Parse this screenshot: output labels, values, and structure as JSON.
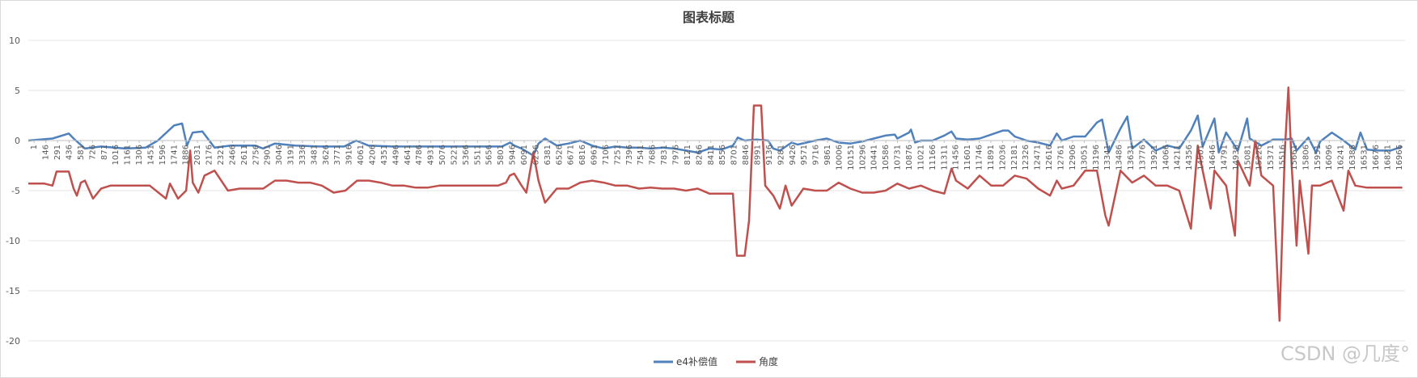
{
  "chart_data": {
    "type": "line",
    "title": "图表标题",
    "xlabel": "",
    "ylabel": "",
    "ylim": [
      -20,
      10
    ],
    "yticks": [
      10,
      5,
      0,
      -5,
      -10,
      -15,
      -20
    ],
    "xlim": [
      1,
      17000
    ],
    "x_tick_labels": [
      "1",
      "146",
      "291",
      "436",
      "581",
      "726",
      "871",
      "1016",
      "1161",
      "1306",
      "1451",
      "1596",
      "1741",
      "1886",
      "2031",
      "2176",
      "2321",
      "2466",
      "2611",
      "2756",
      "2901",
      "3046",
      "3191",
      "3336",
      "3481",
      "3626",
      "3771",
      "3916",
      "4061",
      "4206",
      "4351",
      "4496",
      "4641",
      "4786",
      "4931",
      "5076",
      "5221",
      "5366",
      "5511",
      "5656",
      "5801",
      "5946",
      "6091",
      "6236",
      "6381",
      "6526",
      "6671",
      "6816",
      "6961",
      "7106",
      "7251",
      "7396",
      "7541",
      "7686",
      "7831",
      "7976",
      "8121",
      "8266",
      "8411",
      "8556",
      "8701",
      "8846",
      "8991",
      "9136",
      "9281",
      "9426",
      "9571",
      "9716",
      "9861",
      "10006",
      "10151",
      "10296",
      "10441",
      "10586",
      "10731",
      "10876",
      "11021",
      "11166",
      "11311",
      "11456",
      "11601",
      "11746",
      "11891",
      "12036",
      "12181",
      "12326",
      "12471",
      "12616",
      "12761",
      "12906",
      "13051",
      "13196",
      "13341",
      "13486",
      "13631",
      "13776",
      "13921",
      "14066",
      "14211",
      "14356",
      "14501",
      "14646",
      "14791",
      "14936",
      "15081",
      "15226",
      "15371",
      "15516",
      "15661",
      "15806",
      "15951",
      "16096",
      "16241",
      "16386",
      "16531",
      "16676",
      "16821",
      "16966"
    ],
    "grid": true,
    "legend_position": "bottom",
    "series": [
      {
        "name": "e4补偿值",
        "color": "#4F81BD",
        "points": [
          [
            1,
            0
          ],
          [
            300,
            0.2
          ],
          [
            500,
            0.7
          ],
          [
            560,
            0.2
          ],
          [
            700,
            -0.8
          ],
          [
            900,
            -0.6
          ],
          [
            1200,
            -0.8
          ],
          [
            1450,
            -0.7
          ],
          [
            1600,
            0
          ],
          [
            1800,
            1.5
          ],
          [
            1900,
            1.7
          ],
          [
            1960,
            -0.5
          ],
          [
            2030,
            0.8
          ],
          [
            2150,
            0.9
          ],
          [
            2300,
            -0.7
          ],
          [
            2500,
            -0.5
          ],
          [
            2800,
            -0.5
          ],
          [
            2900,
            -0.8
          ],
          [
            3046,
            -0.3
          ],
          [
            3300,
            -0.5
          ],
          [
            3600,
            -0.6
          ],
          [
            3900,
            -0.6
          ],
          [
            4050,
            0
          ],
          [
            4200,
            -0.5
          ],
          [
            4500,
            -0.6
          ],
          [
            4800,
            -0.6
          ],
          [
            5100,
            -0.6
          ],
          [
            5400,
            -0.6
          ],
          [
            5700,
            -0.6
          ],
          [
            5850,
            -0.6
          ],
          [
            5950,
            -0.2
          ],
          [
            6000,
            -0.5
          ],
          [
            6091,
            -0.8
          ],
          [
            6236,
            -1.5
          ],
          [
            6300,
            -0.3
          ],
          [
            6381,
            0.2
          ],
          [
            6526,
            -0.5
          ],
          [
            6671,
            -0.3
          ],
          [
            6816,
            0
          ],
          [
            6961,
            -0.5
          ],
          [
            7106,
            -0.8
          ],
          [
            7251,
            -0.6
          ],
          [
            7396,
            -0.7
          ],
          [
            7541,
            -0.7
          ],
          [
            7686,
            -0.8
          ],
          [
            7831,
            -0.7
          ],
          [
            7976,
            -0.8
          ],
          [
            8121,
            -1
          ],
          [
            8266,
            -1.2
          ],
          [
            8411,
            -0.8
          ],
          [
            8556,
            -0.9
          ],
          [
            8701,
            -0.5
          ],
          [
            8760,
            0.3
          ],
          [
            8846,
            0
          ],
          [
            8991,
            0.1
          ],
          [
            9136,
            0
          ],
          [
            9200,
            -0.8
          ],
          [
            9281,
            -1
          ],
          [
            9426,
            -0.2
          ],
          [
            9500,
            -0.4
          ],
          [
            9716,
            0
          ],
          [
            9861,
            0.2
          ],
          [
            10006,
            -0.2
          ],
          [
            10151,
            -0.3
          ],
          [
            10296,
            -0.1
          ],
          [
            10441,
            0.2
          ],
          [
            10586,
            0.5
          ],
          [
            10700,
            0.6
          ],
          [
            10731,
            0.2
          ],
          [
            10876,
            0.8
          ],
          [
            10900,
            1.1
          ],
          [
            10950,
            -0.2
          ],
          [
            11021,
            0
          ],
          [
            11166,
            0
          ],
          [
            11311,
            0.5
          ],
          [
            11400,
            0.9
          ],
          [
            11456,
            0.2
          ],
          [
            11601,
            0.1
          ],
          [
            11746,
            0.2
          ],
          [
            11891,
            0.6
          ],
          [
            12036,
            1
          ],
          [
            12100,
            1
          ],
          [
            12181,
            0.4
          ],
          [
            12326,
            0
          ],
          [
            12471,
            -0.2
          ],
          [
            12616,
            -0.5
          ],
          [
            12700,
            0.7
          ],
          [
            12761,
            0
          ],
          [
            12906,
            0.4
          ],
          [
            13051,
            0.4
          ],
          [
            13196,
            1.8
          ],
          [
            13260,
            2.1
          ],
          [
            13341,
            -1.2
          ],
          [
            13486,
            1.2
          ],
          [
            13570,
            2.4
          ],
          [
            13631,
            -0.8
          ],
          [
            13776,
            0.1
          ],
          [
            13921,
            -1
          ],
          [
            14066,
            -0.5
          ],
          [
            14211,
            -0.8
          ],
          [
            14356,
            1
          ],
          [
            14440,
            2.5
          ],
          [
            14501,
            -0.6
          ],
          [
            14646,
            2.2
          ],
          [
            14700,
            -1.2
          ],
          [
            14791,
            0.8
          ],
          [
            14936,
            -1
          ],
          [
            15050,
            2.2
          ],
          [
            15081,
            0.2
          ],
          [
            15226,
            -0.5
          ],
          [
            15371,
            0.1
          ],
          [
            15516,
            0.1
          ],
          [
            15600,
            0.2
          ],
          [
            15661,
            -1
          ],
          [
            15806,
            0.3
          ],
          [
            15900,
            -1.2
          ],
          [
            15951,
            -0.1
          ],
          [
            16096,
            0.8
          ],
          [
            16241,
            0
          ],
          [
            16386,
            -0.9
          ],
          [
            16450,
            0.8
          ],
          [
            16531,
            -0.9
          ],
          [
            16676,
            -1
          ],
          [
            16821,
            -1
          ],
          [
            16966,
            -0.6
          ]
        ]
      },
      {
        "name": "角度",
        "color": "#C0504D",
        "points": [
          [
            1,
            -4.3
          ],
          [
            200,
            -4.3
          ],
          [
            300,
            -4.5
          ],
          [
            350,
            -3.1
          ],
          [
            500,
            -3.1
          ],
          [
            560,
            -4.8
          ],
          [
            600,
            -5.5
          ],
          [
            650,
            -4.2
          ],
          [
            700,
            -4
          ],
          [
            800,
            -5.8
          ],
          [
            900,
            -4.8
          ],
          [
            1016,
            -4.5
          ],
          [
            1300,
            -4.5
          ],
          [
            1500,
            -4.5
          ],
          [
            1700,
            -5.8
          ],
          [
            1750,
            -4.3
          ],
          [
            1850,
            -5.8
          ],
          [
            1950,
            -5
          ],
          [
            2000,
            -1
          ],
          [
            2031,
            -4.2
          ],
          [
            2100,
            -5.2
          ],
          [
            2176,
            -3.5
          ],
          [
            2300,
            -3
          ],
          [
            2466,
            -5
          ],
          [
            2611,
            -4.8
          ],
          [
            2756,
            -4.8
          ],
          [
            2901,
            -4.8
          ],
          [
            3046,
            -4
          ],
          [
            3191,
            -4
          ],
          [
            3336,
            -4.2
          ],
          [
            3481,
            -4.2
          ],
          [
            3626,
            -4.5
          ],
          [
            3771,
            -5.2
          ],
          [
            3916,
            -5
          ],
          [
            4061,
            -4
          ],
          [
            4206,
            -4
          ],
          [
            4351,
            -4.2
          ],
          [
            4496,
            -4.5
          ],
          [
            4641,
            -4.5
          ],
          [
            4786,
            -4.7
          ],
          [
            4931,
            -4.7
          ],
          [
            5076,
            -4.5
          ],
          [
            5221,
            -4.5
          ],
          [
            5366,
            -4.5
          ],
          [
            5511,
            -4.5
          ],
          [
            5656,
            -4.5
          ],
          [
            5801,
            -4.5
          ],
          [
            5900,
            -4.2
          ],
          [
            5946,
            -3.5
          ],
          [
            6000,
            -3.3
          ],
          [
            6091,
            -4.5
          ],
          [
            6150,
            -5.2
          ],
          [
            6236,
            -1.2
          ],
          [
            6300,
            -4
          ],
          [
            6381,
            -6.2
          ],
          [
            6526,
            -4.8
          ],
          [
            6671,
            -4.8
          ],
          [
            6816,
            -4.2
          ],
          [
            6961,
            -4
          ],
          [
            7106,
            -4.2
          ],
          [
            7251,
            -4.5
          ],
          [
            7396,
            -4.5
          ],
          [
            7541,
            -4.8
          ],
          [
            7686,
            -4.7
          ],
          [
            7831,
            -4.8
          ],
          [
            7976,
            -4.8
          ],
          [
            8121,
            -5
          ],
          [
            8266,
            -4.8
          ],
          [
            8411,
            -5.3
          ],
          [
            8556,
            -5.3
          ],
          [
            8701,
            -5.3
          ],
          [
            8750,
            -11.5
          ],
          [
            8846,
            -11.5
          ],
          [
            8900,
            -8
          ],
          [
            8960,
            3.5
          ],
          [
            9050,
            3.5
          ],
          [
            9100,
            -4.5
          ],
          [
            9200,
            -5.5
          ],
          [
            9281,
            -6.8
          ],
          [
            9350,
            -4.5
          ],
          [
            9426,
            -6.5
          ],
          [
            9571,
            -4.8
          ],
          [
            9716,
            -5
          ],
          [
            9861,
            -5
          ],
          [
            10006,
            -4.2
          ],
          [
            10151,
            -4.8
          ],
          [
            10296,
            -5.2
          ],
          [
            10441,
            -5.2
          ],
          [
            10586,
            -5
          ],
          [
            10731,
            -4.3
          ],
          [
            10876,
            -4.8
          ],
          [
            11021,
            -4.5
          ],
          [
            11166,
            -5
          ],
          [
            11311,
            -5.3
          ],
          [
            11400,
            -2.8
          ],
          [
            11456,
            -4
          ],
          [
            11601,
            -4.8
          ],
          [
            11746,
            -3.5
          ],
          [
            11891,
            -4.5
          ],
          [
            12036,
            -4.5
          ],
          [
            12181,
            -3.5
          ],
          [
            12326,
            -3.8
          ],
          [
            12471,
            -4.8
          ],
          [
            12616,
            -5.5
          ],
          [
            12700,
            -4
          ],
          [
            12761,
            -4.8
          ],
          [
            12906,
            -4.5
          ],
          [
            13051,
            -3
          ],
          [
            13196,
            -3
          ],
          [
            13300,
            -7.5
          ],
          [
            13341,
            -8.5
          ],
          [
            13486,
            -3
          ],
          [
            13631,
            -4.2
          ],
          [
            13776,
            -3.5
          ],
          [
            13921,
            -4.5
          ],
          [
            14066,
            -4.5
          ],
          [
            14211,
            -5
          ],
          [
            14356,
            -8.8
          ],
          [
            14440,
            -0.5
          ],
          [
            14501,
            -3
          ],
          [
            14600,
            -6.8
          ],
          [
            14646,
            -3
          ],
          [
            14791,
            -4.5
          ],
          [
            14900,
            -9.5
          ],
          [
            14936,
            -2
          ],
          [
            15081,
            -4.5
          ],
          [
            15150,
            0
          ],
          [
            15226,
            -3.5
          ],
          [
            15371,
            -4.5
          ],
          [
            15450,
            -18
          ],
          [
            15516,
            -1
          ],
          [
            15560,
            5.3
          ],
          [
            15600,
            -2.5
          ],
          [
            15661,
            -10.5
          ],
          [
            15700,
            -4
          ],
          [
            15806,
            -11.3
          ],
          [
            15850,
            -4.5
          ],
          [
            15951,
            -4.5
          ],
          [
            16096,
            -4
          ],
          [
            16241,
            -7
          ],
          [
            16300,
            -3
          ],
          [
            16386,
            -4.5
          ],
          [
            16531,
            -4.7
          ],
          [
            16676,
            -4.7
          ],
          [
            16821,
            -4.7
          ],
          [
            16966,
            -4.7
          ]
        ]
      }
    ],
    "watermark": "CSDN @几度°"
  }
}
